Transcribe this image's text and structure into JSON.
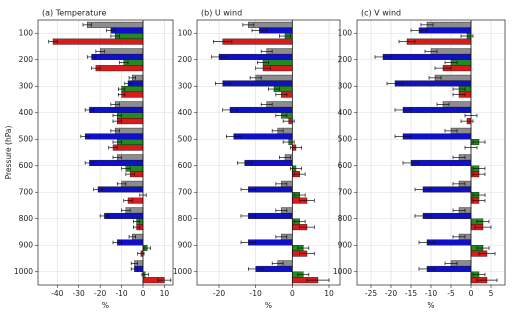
{
  "chart_data": [
    {
      "type": "bar",
      "orientation": "horizontal",
      "title": "(a) Temperature",
      "ylabel": "Pressure (hPa)",
      "xlabel": "%",
      "categories": [
        100,
        200,
        300,
        400,
        500,
        600,
        700,
        800,
        900,
        1000
      ],
      "xlim": [
        -49,
        14
      ],
      "xticks": [
        -40,
        -30,
        -20,
        -10,
        0,
        10
      ],
      "grid": true,
      "series": [
        {
          "color": "#8c8c8c",
          "values": [
            -26,
            -20,
            -5,
            -13,
            -13,
            -12,
            -10,
            -8,
            -5,
            -4
          ],
          "errors": [
            2,
            2,
            1.5,
            2,
            2,
            2,
            2,
            2,
            1.5,
            1.5
          ]
        },
        {
          "color": "#1010c8",
          "values": [
            -15,
            -24,
            -7,
            -25,
            -27,
            -25,
            -21,
            -18,
            -12,
            -4
          ],
          "errors": [
            2,
            2,
            1.5,
            2,
            2,
            2,
            2,
            2,
            2,
            1.5
          ]
        },
        {
          "color": "#1e8c1e",
          "values": [
            -13,
            -9,
            -10,
            -12,
            -12,
            -8,
            0,
            -3,
            2,
            1
          ],
          "errors": [
            2,
            2,
            1.5,
            2,
            2,
            2,
            1.5,
            1.5,
            1.5,
            1.5
          ]
        },
        {
          "color": "#dd1a1a",
          "values": [
            -42,
            -22,
            -10,
            -12,
            -14,
            -6,
            -7,
            -3,
            -1,
            10
          ],
          "errors": [
            2,
            2,
            1.5,
            2,
            2,
            2,
            2,
            1.5,
            1.5,
            3
          ]
        }
      ]
    },
    {
      "type": "bar",
      "orientation": "horizontal",
      "title": "(b) U wind",
      "xlabel": "%",
      "categories": [
        100,
        200,
        300,
        400,
        500,
        600,
        700,
        800,
        900,
        1000
      ],
      "xlim": [
        -26,
        13
      ],
      "xticks": [
        -20,
        -10,
        0,
        10
      ],
      "grid": true,
      "series": [
        {
          "color": "#8c8c8c",
          "values": [
            -12,
            -7,
            -10,
            -7,
            -4,
            -2,
            -3,
            -3,
            -3,
            -4
          ],
          "errors": [
            1.5,
            1.5,
            1.5,
            1.5,
            1.5,
            1.5,
            1.5,
            1.5,
            1.5,
            1.5
          ]
        },
        {
          "color": "#1010c8",
          "values": [
            -9,
            -20,
            -19,
            -17,
            -16,
            -13,
            -12,
            -12,
            -12,
            -10
          ],
          "errors": [
            2,
            2,
            2,
            2,
            2,
            2,
            2,
            2,
            2,
            2
          ]
        },
        {
          "color": "#1e8c1e",
          "values": [
            -2,
            -8,
            -5,
            -3,
            -1,
            1,
            2,
            2,
            3,
            3
          ],
          "errors": [
            1.5,
            1.5,
            1.5,
            1.5,
            1.5,
            1.5,
            1.5,
            1.5,
            1.5,
            1.5
          ]
        },
        {
          "color": "#dd1a1a",
          "values": [
            -19,
            -8,
            -3,
            -1,
            1,
            2,
            4,
            4,
            4,
            7
          ],
          "errors": [
            2.5,
            2,
            1.5,
            1.5,
            1.5,
            1.5,
            2,
            2,
            2,
            3
          ]
        }
      ]
    },
    {
      "type": "bar",
      "orientation": "horizontal",
      "title": "(c) V wind",
      "xlabel": "%",
      "categories": [
        100,
        200,
        300,
        400,
        500,
        600,
        700,
        800,
        900,
        1000
      ],
      "xlim": [
        -28.5,
        8.5
      ],
      "xticks": [
        -25,
        -20,
        -15,
        -10,
        -5,
        0,
        5
      ],
      "grid": true,
      "series": [
        {
          "color": "#8c8c8c",
          "values": [
            -11,
            -10,
            -9,
            -7,
            -5,
            -3,
            -3,
            -3,
            -3,
            -5
          ],
          "errors": [
            1.5,
            1.5,
            1.5,
            1.5,
            1.5,
            1.5,
            1.5,
            1.5,
            1.5,
            1.5
          ]
        },
        {
          "color": "#1010c8",
          "values": [
            -13,
            -22,
            -19,
            -17,
            -17,
            -15,
            -12,
            -12,
            -11,
            -11
          ],
          "errors": [
            2,
            2,
            2,
            2,
            2,
            2,
            2,
            2,
            2,
            2
          ]
        },
        {
          "color": "#1e8c1e",
          "values": [
            -1,
            -5,
            -3,
            0,
            2,
            2,
            2,
            3,
            3,
            2
          ],
          "errors": [
            1.5,
            1.5,
            1.5,
            1.5,
            1.5,
            1.5,
            1.5,
            1.5,
            1.5,
            1.5
          ]
        },
        {
          "color": "#dd1a1a",
          "values": [
            -16,
            -7,
            -3,
            -1,
            0,
            2,
            2,
            3,
            4,
            4
          ],
          "errors": [
            2,
            2,
            1.5,
            1.5,
            1.5,
            1.5,
            1.5,
            2,
            2,
            2.5
          ]
        }
      ]
    }
  ]
}
